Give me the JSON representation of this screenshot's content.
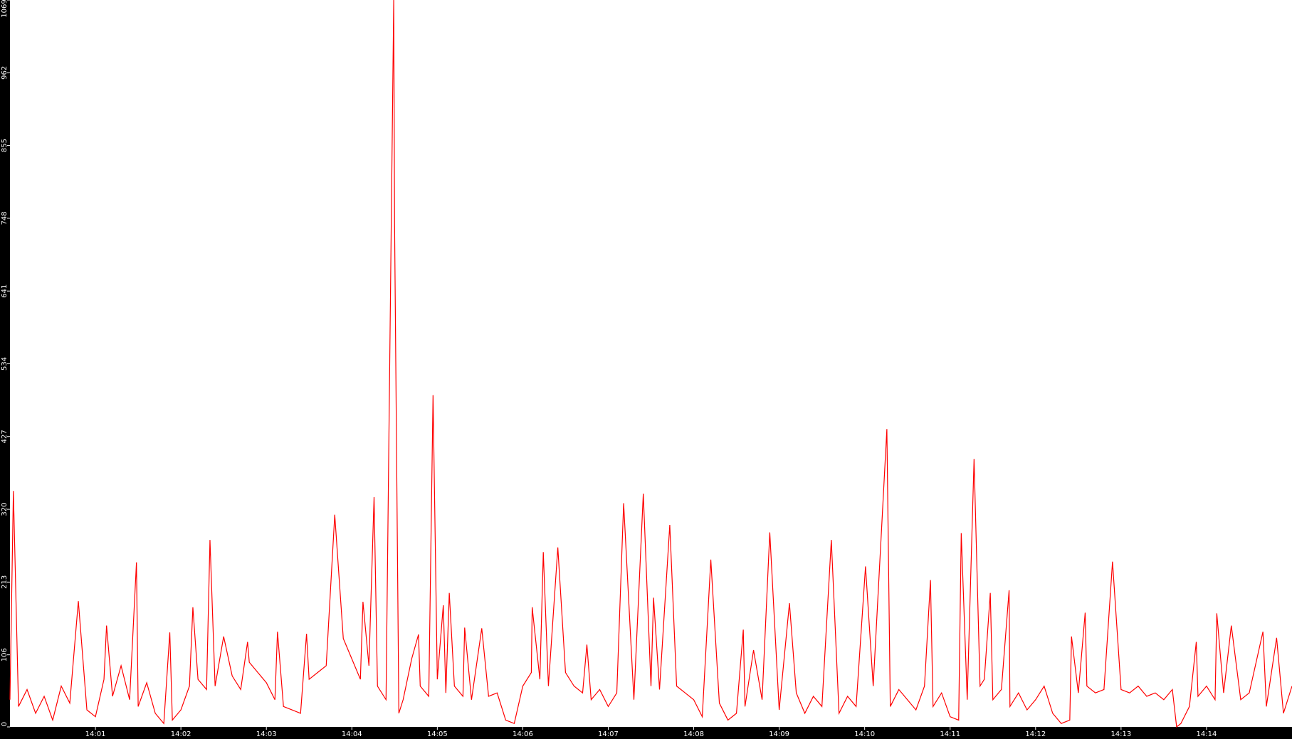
{
  "chart_data": {
    "type": "line",
    "x": [
      0.0,
      0.04,
      0.1,
      0.2,
      0.3,
      0.4,
      0.5,
      0.6,
      0.7,
      0.8,
      0.9,
      1.0,
      1.1,
      1.13,
      1.2,
      1.3,
      1.4,
      1.48,
      1.5,
      1.6,
      1.7,
      1.8,
      1.87,
      1.9,
      2.0,
      2.1,
      2.14,
      2.2,
      2.3,
      2.34,
      2.4,
      2.5,
      2.6,
      2.7,
      2.78,
      2.8,
      2.9,
      3.0,
      3.1,
      3.13,
      3.2,
      3.3,
      3.4,
      3.47,
      3.5,
      3.6,
      3.7,
      3.8,
      3.9,
      4.0,
      4.1,
      4.13,
      4.2,
      4.26,
      4.3,
      4.4,
      4.49,
      4.5,
      4.55,
      4.6,
      4.7,
      4.78,
      4.8,
      4.9,
      4.95,
      5.0,
      5.07,
      5.1,
      5.14,
      5.2,
      5.3,
      5.32,
      5.4,
      5.52,
      5.6,
      5.7,
      5.8,
      5.9,
      6.0,
      6.1,
      6.11,
      6.2,
      6.24,
      6.3,
      6.41,
      6.5,
      6.6,
      6.7,
      6.75,
      6.8,
      6.9,
      7.0,
      7.1,
      7.18,
      7.3,
      7.41,
      7.5,
      7.53,
      7.6,
      7.72,
      7.8,
      7.9,
      8.0,
      8.1,
      8.2,
      8.3,
      8.4,
      8.5,
      8.58,
      8.6,
      8.7,
      8.8,
      8.89,
      9.0,
      9.12,
      9.2,
      9.3,
      9.4,
      9.5,
      9.61,
      9.7,
      9.8,
      9.9,
      10.01,
      10.1,
      10.26,
      10.3,
      10.4,
      10.5,
      10.6,
      10.7,
      10.77,
      10.8,
      10.9,
      11.0,
      11.1,
      11.13,
      11.2,
      11.28,
      11.35,
      11.4,
      11.47,
      11.5,
      11.6,
      11.69,
      11.7,
      11.8,
      11.9,
      12.0,
      12.1,
      12.2,
      12.3,
      12.4,
      12.42,
      12.5,
      12.58,
      12.6,
      12.7,
      12.8,
      12.9,
      13.0,
      13.1,
      13.2,
      13.3,
      13.4,
      13.5,
      13.6,
      13.65,
      13.7,
      13.8,
      13.88,
      13.9,
      14.0,
      14.1,
      14.12,
      14.2,
      14.29,
      14.4,
      14.5,
      14.66,
      14.7,
      14.82,
      14.9,
      15.0
    ],
    "values": [
      40,
      347,
      30,
      55,
      20,
      45,
      10,
      60,
      35,
      185,
      25,
      15,
      70,
      149,
      45,
      90,
      40,
      242,
      30,
      65,
      20,
      5,
      139,
      10,
      25,
      60,
      176,
      70,
      55,
      275,
      60,
      133,
      75,
      55,
      125,
      95,
      80,
      65,
      40,
      140,
      30,
      25,
      20,
      137,
      70,
      80,
      90,
      312,
      130,
      100,
      70,
      184,
      90,
      338,
      60,
      40,
      1069,
      740,
      20,
      40,
      100,
      136,
      60,
      45,
      488,
      70,
      179,
      50,
      197,
      60,
      45,
      146,
      40,
      145,
      45,
      50,
      10,
      5,
      60,
      80,
      176,
      70,
      257,
      60,
      264,
      80,
      60,
      50,
      121,
      40,
      55,
      30,
      50,
      329,
      40,
      343,
      60,
      190,
      55,
      297,
      60,
      50,
      40,
      15,
      246,
      35,
      10,
      20,
      143,
      30,
      113,
      40,
      286,
      25,
      182,
      50,
      20,
      45,
      30,
      275,
      20,
      45,
      30,
      236,
      60,
      438,
      30,
      55,
      40,
      25,
      60,
      216,
      30,
      50,
      15,
      10,
      285,
      40,
      394,
      60,
      70,
      197,
      40,
      55,
      201,
      30,
      50,
      25,
      40,
      60,
      20,
      5,
      10,
      133,
      50,
      168,
      60,
      50,
      55,
      243,
      55,
      50,
      60,
      45,
      50,
      40,
      55,
      0,
      5,
      30,
      125,
      45,
      60,
      40,
      167,
      50,
      149,
      40,
      50,
      140,
      30,
      131,
      20,
      60
    ],
    "color": "#ff0000",
    "xlim": [
      0,
      15
    ],
    "xticks": [
      {
        "value": 1,
        "label": "14:01"
      },
      {
        "value": 2,
        "label": "14:02"
      },
      {
        "value": 3,
        "label": "14:03"
      },
      {
        "value": 4,
        "label": "14:04"
      },
      {
        "value": 5,
        "label": "14:05"
      },
      {
        "value": 6,
        "label": "14:06"
      },
      {
        "value": 7,
        "label": "14:07"
      },
      {
        "value": 8,
        "label": "14:08"
      },
      {
        "value": 9,
        "label": "14:09"
      },
      {
        "value": 10,
        "label": "14:10"
      },
      {
        "value": 11,
        "label": "14:11"
      },
      {
        "value": 12,
        "label": "14:12"
      },
      {
        "value": 13,
        "label": "14:13"
      },
      {
        "value": 14,
        "label": "14:14"
      }
    ],
    "ylim": [
      0,
      1069
    ],
    "yticks": [
      0,
      106,
      213,
      320,
      427,
      534,
      641,
      748,
      855,
      962,
      1069
    ]
  }
}
